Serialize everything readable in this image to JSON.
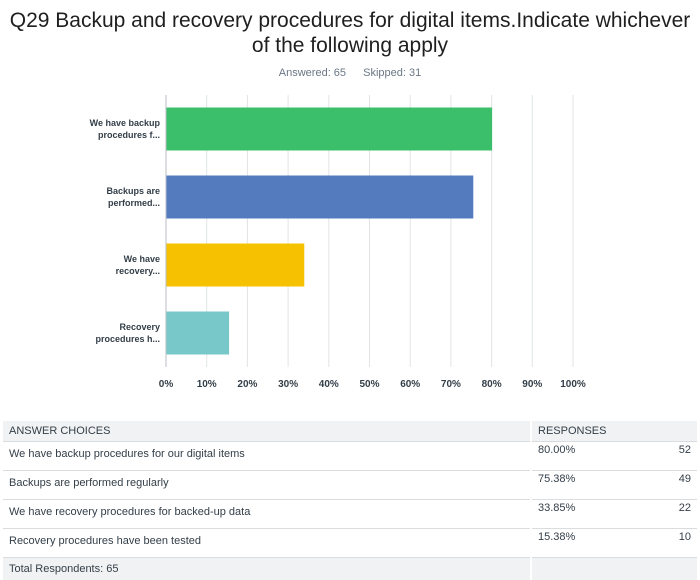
{
  "question": {
    "title": "Q29 Backup and recovery procedures for digital items.Indicate whichever of the following apply",
    "answered": "Answered: 65",
    "skipped": "Skipped: 31"
  },
  "chart_data": {
    "type": "bar",
    "orientation": "horizontal",
    "categories": [
      [
        "We have backup",
        "procedures f..."
      ],
      [
        "Backups are",
        "performed..."
      ],
      [
        "We have",
        "recovery..."
      ],
      [
        "Recovery",
        "procedures h..."
      ]
    ],
    "values": [
      80.0,
      75.38,
      33.85,
      15.38
    ],
    "colors": [
      "#3cbf6a",
      "#537bbd",
      "#f5c100",
      "#78c8ca"
    ],
    "xlim": [
      0,
      100
    ],
    "ticks": [
      "0%",
      "10%",
      "20%",
      "30%",
      "40%",
      "50%",
      "60%",
      "70%",
      "80%",
      "90%",
      "100%"
    ],
    "grid": true
  },
  "table": {
    "headers": {
      "choices": "ANSWER CHOICES",
      "responses": "RESPONSES"
    },
    "rows": [
      {
        "choice": "We have backup procedures for our digital items",
        "percent": "80.00%",
        "count": "52"
      },
      {
        "choice": "Backups are performed regularly",
        "percent": "75.38%",
        "count": "49"
      },
      {
        "choice": "We have recovery procedures for backed-up data",
        "percent": "33.85%",
        "count": "22"
      },
      {
        "choice": "Recovery procedures have been tested",
        "percent": "15.38%",
        "count": "10"
      }
    ],
    "total": "Total Respondents: 65"
  }
}
